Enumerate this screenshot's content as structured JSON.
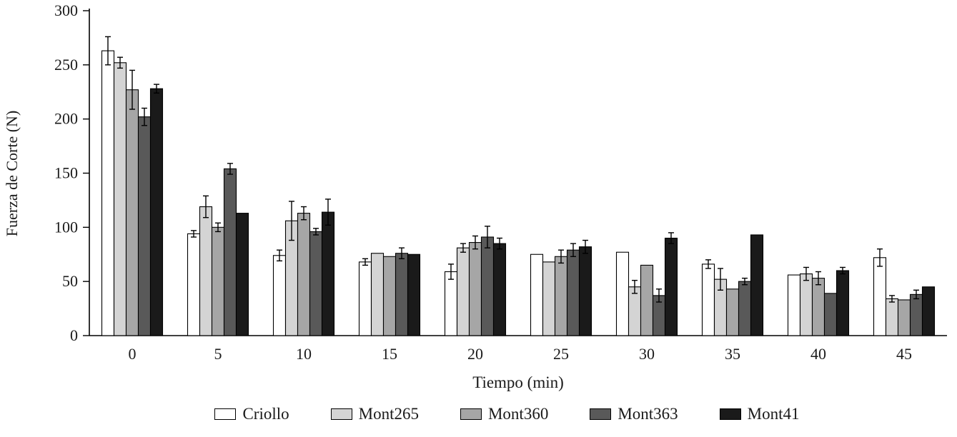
{
  "chart_data": {
    "type": "bar",
    "title": "",
    "xlabel": "Tiempo (min)",
    "ylabel": "Fuerza de Corte (N)",
    "categories": [
      "0",
      "5",
      "10",
      "15",
      "20",
      "25",
      "30",
      "35",
      "40",
      "45"
    ],
    "ylim": [
      0,
      300
    ],
    "yticks": [
      0,
      50,
      100,
      150,
      200,
      250,
      300
    ],
    "grid": false,
    "legend_position": "bottom",
    "series": [
      {
        "name": "Criollo",
        "color": "#ffffff",
        "values": [
          263,
          94,
          74,
          68,
          59,
          75,
          77,
          66,
          56,
          72
        ],
        "errors": [
          13,
          3,
          5,
          3,
          7,
          0,
          0,
          4,
          0,
          8
        ]
      },
      {
        "name": "Mont265",
        "color": "#d4d4d4",
        "values": [
          252,
          119,
          106,
          76,
          81,
          68,
          45,
          52,
          57,
          34
        ],
        "errors": [
          5,
          10,
          18,
          0,
          4,
          0,
          6,
          10,
          6,
          3
        ]
      },
      {
        "name": "Mont360",
        "color": "#a6a6a6",
        "values": [
          227,
          100,
          113,
          73,
          86,
          73,
          65,
          43,
          53,
          33
        ],
        "errors": [
          18,
          4,
          6,
          0,
          6,
          6,
          0,
          0,
          6,
          0
        ]
      },
      {
        "name": "Mont363",
        "color": "#595959",
        "values": [
          202,
          154,
          96,
          76,
          91,
          79,
          37,
          50,
          39,
          38
        ],
        "errors": [
          8,
          5,
          3,
          5,
          10,
          6,
          6,
          3,
          0,
          4
        ]
      },
      {
        "name": "Mont41",
        "color": "#1a1a1a",
        "values": [
          228,
          113,
          114,
          75,
          85,
          82,
          90,
          93,
          60,
          45
        ],
        "errors": [
          4,
          0,
          12,
          0,
          5,
          6,
          5,
          0,
          3,
          0
        ]
      }
    ]
  }
}
